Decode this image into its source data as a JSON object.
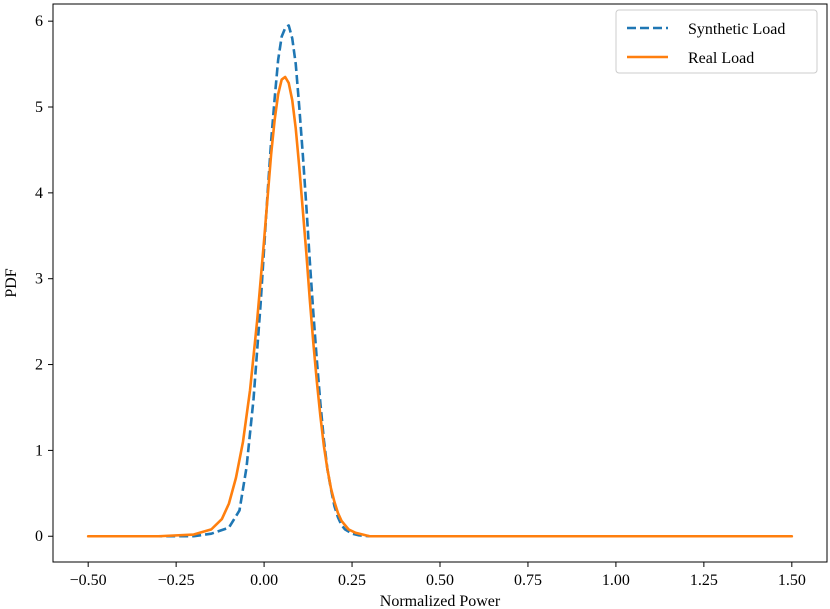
{
  "chart_data": {
    "type": "line",
    "title": "",
    "xlabel": "Normalized Power",
    "ylabel": "PDF",
    "xlim": [
      -0.6,
      1.6
    ],
    "ylim": [
      -0.3,
      6.2
    ],
    "xticks": [
      -0.5,
      -0.25,
      0.0,
      0.25,
      0.5,
      0.75,
      1.0,
      1.25,
      1.5
    ],
    "xtick_labels": [
      "−0.50",
      "−0.25",
      "0.00",
      "0.25",
      "0.50",
      "0.75",
      "1.00",
      "1.25",
      "1.50"
    ],
    "yticks": [
      0,
      1,
      2,
      3,
      4,
      5,
      6
    ],
    "ytick_labels": [
      "0",
      "1",
      "2",
      "3",
      "4",
      "5",
      "6"
    ],
    "grid": false,
    "legend_position": "top-right",
    "series": [
      {
        "name": "Synthetic Load",
        "color": "#1f77b4",
        "dash": "dashed",
        "x": [
          -0.5,
          -0.3,
          -0.2,
          -0.15,
          -0.1,
          -0.07,
          -0.05,
          -0.03,
          -0.01,
          0.0,
          0.01,
          0.02,
          0.03,
          0.04,
          0.05,
          0.06,
          0.07,
          0.08,
          0.09,
          0.1,
          0.11,
          0.12,
          0.13,
          0.14,
          0.15,
          0.16,
          0.17,
          0.18,
          0.19,
          0.2,
          0.21,
          0.22,
          0.23,
          0.25,
          0.27,
          0.3,
          0.35,
          0.5,
          1.5
        ],
        "y": [
          0.0,
          0.0,
          0.0,
          0.03,
          0.1,
          0.3,
          0.8,
          1.6,
          2.7,
          3.35,
          4.0,
          4.6,
          5.1,
          5.55,
          5.82,
          5.92,
          5.95,
          5.8,
          5.5,
          5.0,
          4.45,
          3.85,
          3.2,
          2.6,
          2.05,
          1.55,
          1.12,
          0.78,
          0.55,
          0.35,
          0.22,
          0.13,
          0.08,
          0.03,
          0.01,
          0.0,
          0.0,
          0.0,
          0.0
        ]
      },
      {
        "name": "Real Load",
        "color": "#ff7f0e",
        "dash": "solid",
        "x": [
          -0.5,
          -0.3,
          -0.2,
          -0.15,
          -0.12,
          -0.1,
          -0.08,
          -0.06,
          -0.04,
          -0.02,
          0.0,
          0.01,
          0.02,
          0.03,
          0.04,
          0.05,
          0.06,
          0.07,
          0.08,
          0.09,
          0.1,
          0.11,
          0.12,
          0.13,
          0.14,
          0.15,
          0.16,
          0.17,
          0.18,
          0.19,
          0.2,
          0.21,
          0.22,
          0.24,
          0.26,
          0.28,
          0.3,
          0.35,
          0.5,
          1.5
        ],
        "y": [
          0.0,
          0.0,
          0.02,
          0.08,
          0.2,
          0.38,
          0.68,
          1.1,
          1.7,
          2.5,
          3.45,
          3.95,
          4.45,
          4.85,
          5.15,
          5.32,
          5.35,
          5.28,
          5.08,
          4.75,
          4.3,
          3.8,
          3.3,
          2.75,
          2.25,
          1.8,
          1.4,
          1.05,
          0.78,
          0.56,
          0.4,
          0.27,
          0.18,
          0.08,
          0.04,
          0.02,
          0.0,
          0.0,
          0.0,
          0.0
        ]
      }
    ]
  }
}
